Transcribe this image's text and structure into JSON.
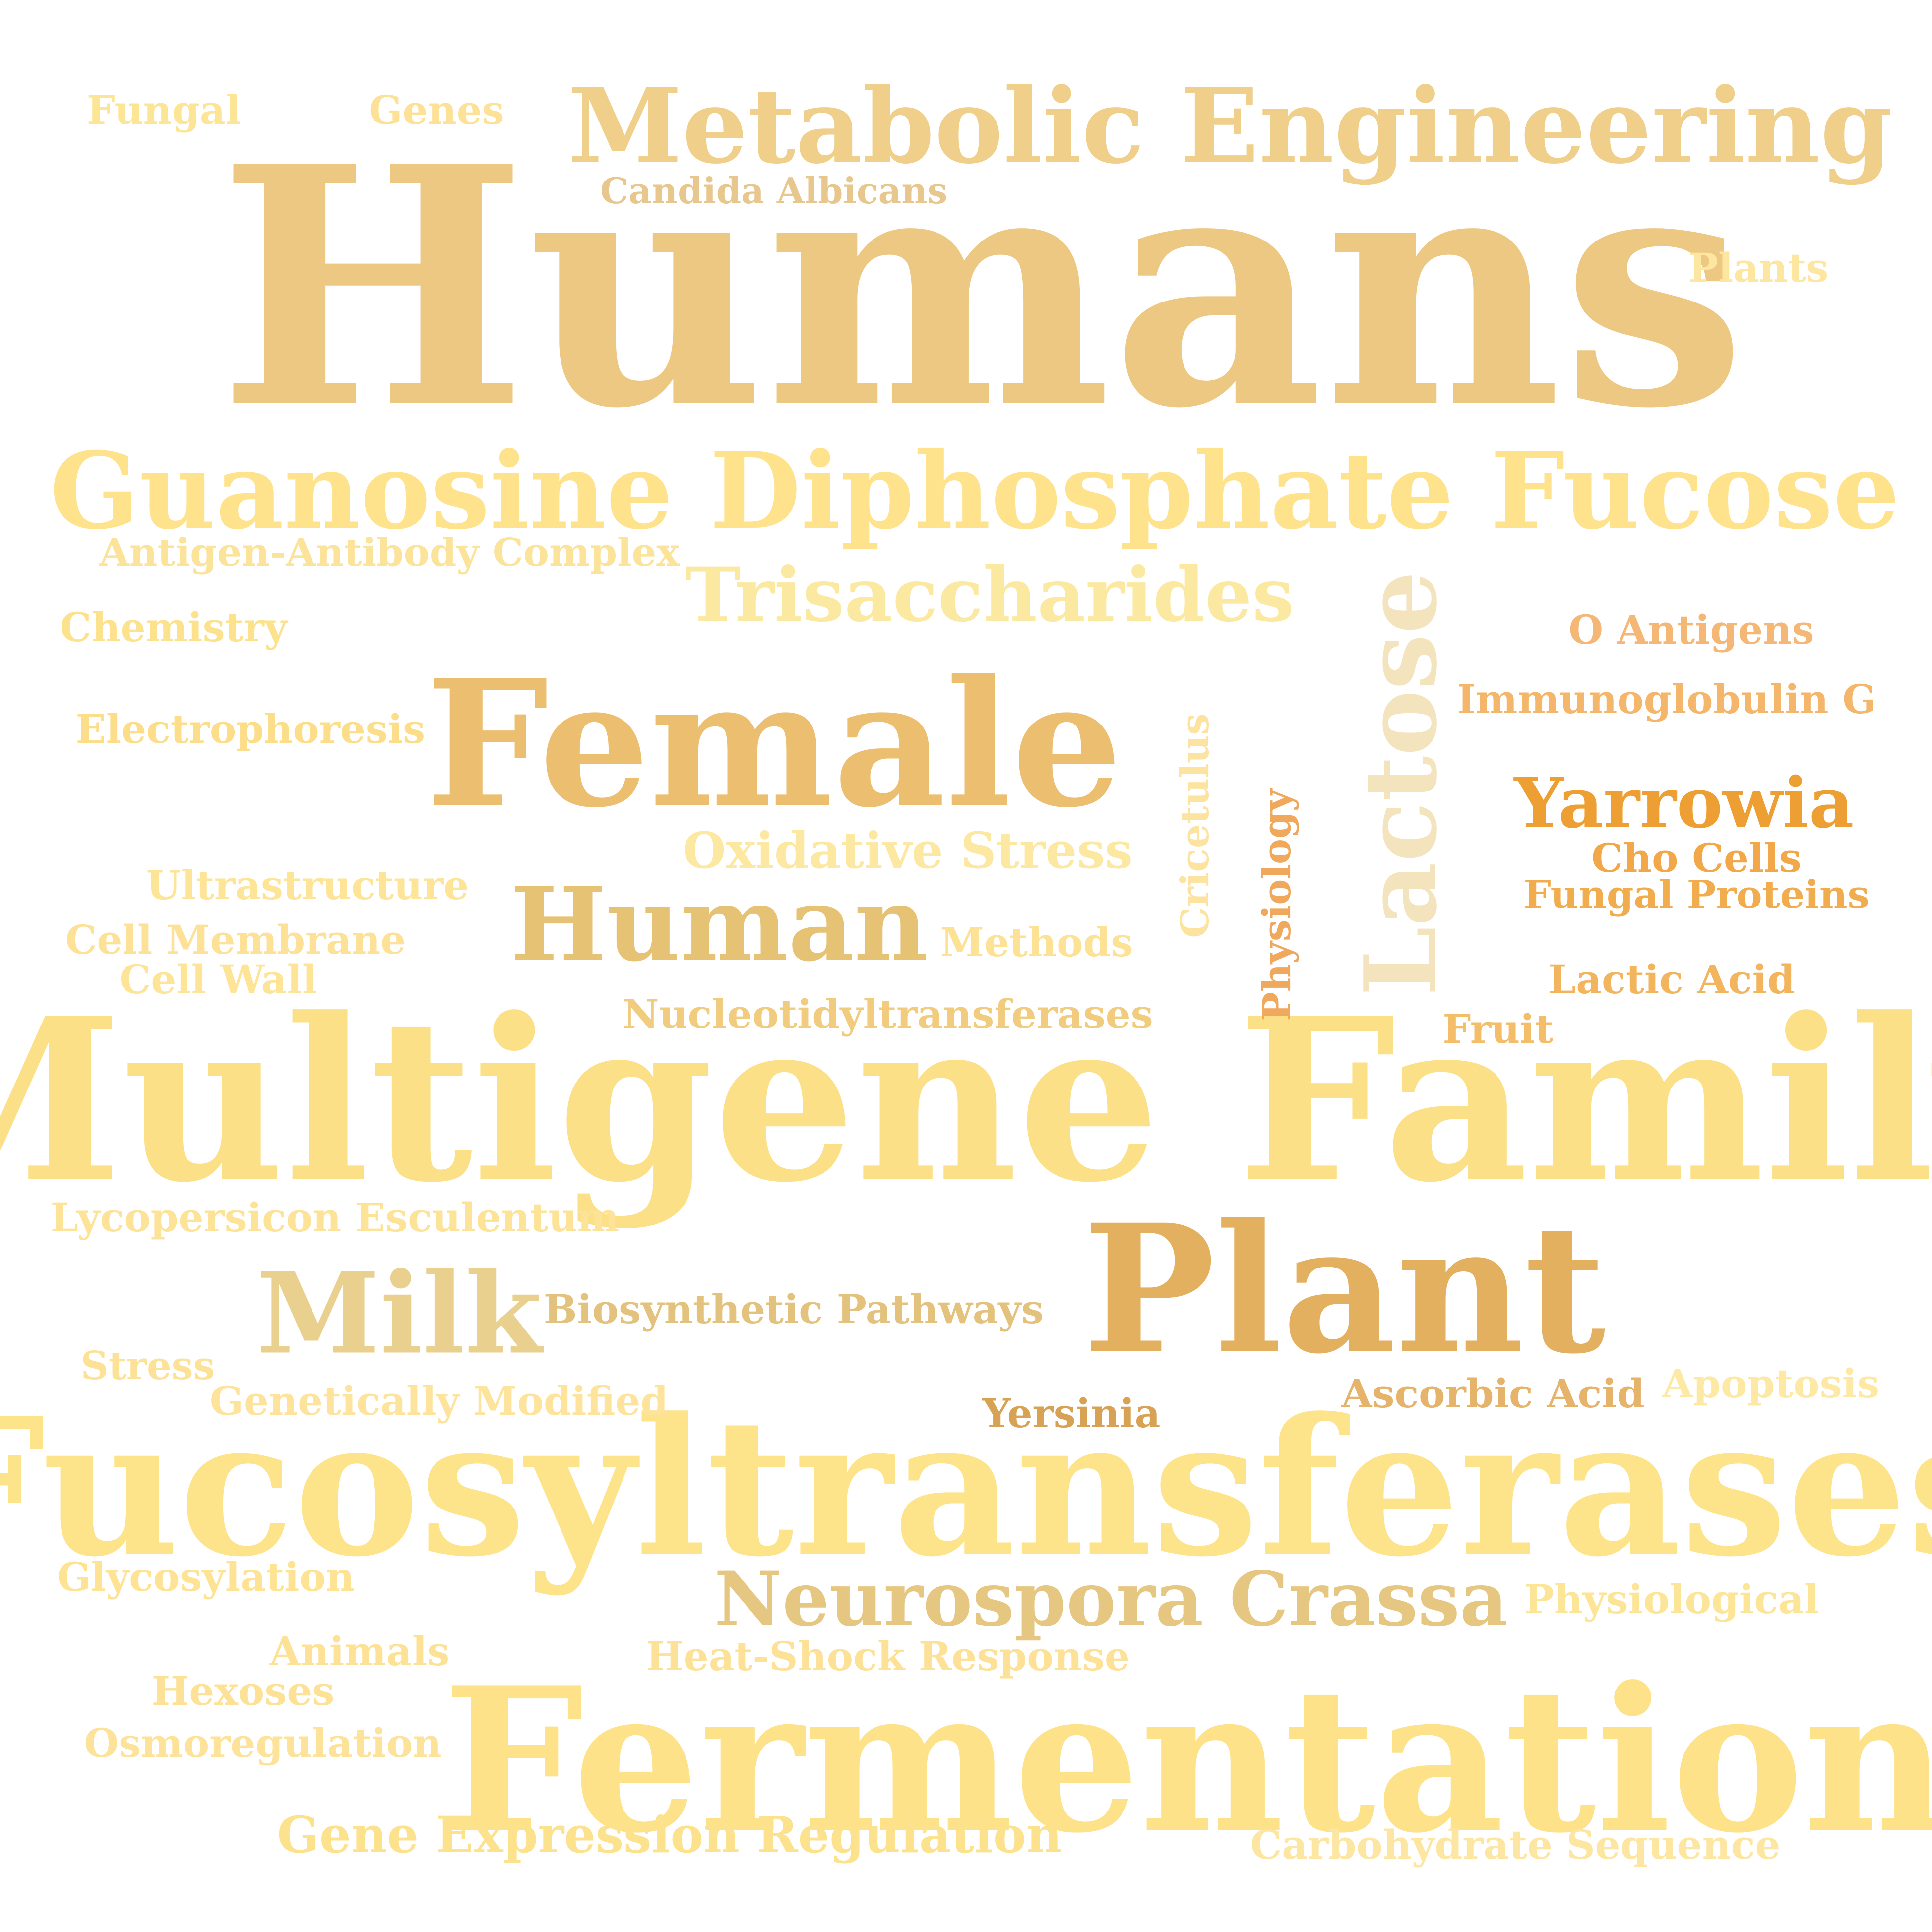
{
  "words": [
    {
      "text": "Humans",
      "color": "#ecc882"
    },
    {
      "text": "Multigene Family",
      "color": "#fce087"
    },
    {
      "text": "Fucosyltransferases",
      "color": "#fde38a"
    },
    {
      "text": "Fermentation",
      "color": "#fde28a"
    },
    {
      "text": "Guanosine Diphosphate Fucose",
      "color": "#fee28c"
    },
    {
      "text": "Metabolic Engineering",
      "color": "#efcf8a"
    },
    {
      "text": "Female",
      "color": "#ecbe70"
    },
    {
      "text": "Plant",
      "color": "#e3b060"
    },
    {
      "text": "Lactose",
      "color": "#f4e4bd"
    },
    {
      "text": "Human",
      "color": "#e6c275"
    },
    {
      "text": "Milk",
      "color": "#e9d08f"
    },
    {
      "text": "Neurospora Crassa",
      "color": "#e6c781"
    },
    {
      "text": "Trisaccharides",
      "color": "#fce9a1"
    },
    {
      "text": "Yarrowia",
      "color": "#ed9f33"
    },
    {
      "text": "Oxidative Stress",
      "color": "#fce8a0"
    },
    {
      "text": "Gene Expression Regulation",
      "color": "#fde28d"
    },
    {
      "text": "Biosynthetic Pathways",
      "color": "#e3c27e"
    },
    {
      "text": "Candida Albicans",
      "color": "#e7c78d"
    },
    {
      "text": "Antigen-Antibody Complex",
      "color": "#fce39a"
    },
    {
      "text": "Chemistry",
      "color": "#fde28d"
    },
    {
      "text": "Electrophoresis",
      "color": "#fcde8a"
    },
    {
      "text": "O Antigens",
      "color": "#f4b776"
    },
    {
      "text": "Immunoglobulin G",
      "color": "#f3b66a"
    },
    {
      "text": "Cho Cells",
      "color": "#f2a848"
    },
    {
      "text": "Fungal Proteins",
      "color": "#f1ad4d"
    },
    {
      "text": "Lactic Acid",
      "color": "#f3b45e"
    },
    {
      "text": "Fruit",
      "color": "#f4bd6a"
    },
    {
      "text": "Ultrastructure",
      "color": "#fde496"
    },
    {
      "text": "Cell Membrane",
      "color": "#fde196"
    },
    {
      "text": "Cell Wall",
      "color": "#fde496"
    },
    {
      "text": "Methods",
      "color": "#fde194"
    },
    {
      "text": "Nucleotidyltransferases",
      "color": "#f1cc7f"
    },
    {
      "text": "Cricetulus",
      "color": "#fde3a0"
    },
    {
      "text": "Physiology",
      "color": "#f0a85c"
    },
    {
      "text": "Lycopersicon Esculentum",
      "color": "#fde397"
    },
    {
      "text": "Stress",
      "color": "#fde197"
    },
    {
      "text": "Genetically Modified",
      "color": "#fde39b"
    },
    {
      "text": "Yersinia",
      "color": "#d8a254"
    },
    {
      "text": "Ascorbic Acid",
      "color": "#e5b36a"
    },
    {
      "text": "Apoptosis",
      "color": "#fde9a3"
    },
    {
      "text": "Glycosylation",
      "color": "#fde393"
    },
    {
      "text": "Physiological",
      "color": "#fde598"
    },
    {
      "text": "Animals",
      "color": "#fde296"
    },
    {
      "text": "Heat-Shock Response",
      "color": "#fde197"
    },
    {
      "text": "Hexoses",
      "color": "#fde196"
    },
    {
      "text": "Osmoregulation",
      "color": "#fde39a"
    },
    {
      "text": "Carbohydrate Sequence",
      "color": "#fde6a2"
    },
    {
      "text": "Fungal",
      "color": "#fde596"
    },
    {
      "text": "Genes",
      "color": "#fde196"
    },
    {
      "text": "Plants",
      "color": "#fde7a0"
    }
  ]
}
